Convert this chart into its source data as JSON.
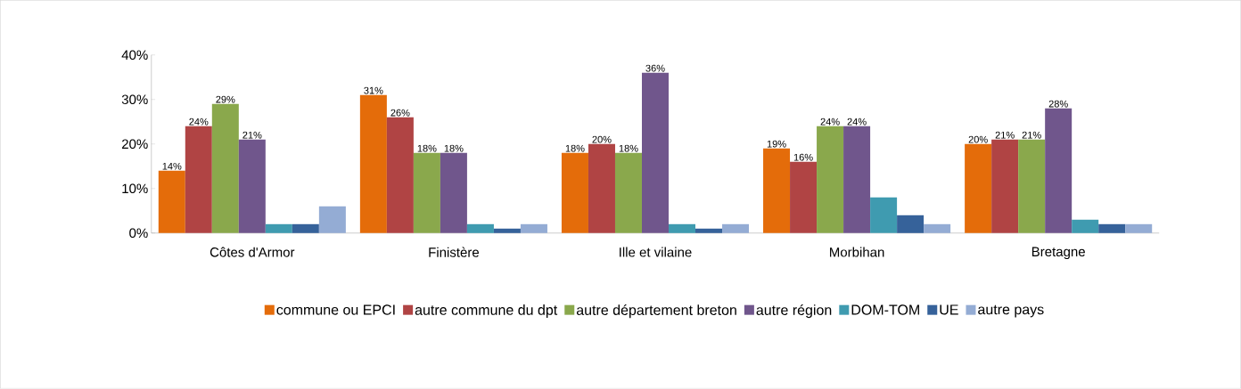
{
  "chart_data": {
    "type": "bar",
    "categories": [
      "Côtes d'Armor",
      "Finistère",
      "Ille et vilaine",
      "Morbihan",
      "Bretagne"
    ],
    "series": [
      {
        "name": "commune ou EPCI",
        "color": "#e46c0a",
        "values": [
          14,
          31,
          18,
          19,
          20
        ],
        "value_labels": [
          "14%",
          "31%",
          "18%",
          "19%",
          "20%"
        ]
      },
      {
        "name": "autre commune du dpt",
        "color": "#b04444",
        "values": [
          24,
          26,
          20,
          16,
          21
        ],
        "value_labels": [
          "24%",
          "26%",
          "20%",
          "16%",
          "21%"
        ]
      },
      {
        "name": "autre département breton",
        "color": "#8aa84c",
        "values": [
          29,
          18,
          18,
          24,
          21
        ],
        "value_labels": [
          "29%",
          "18%",
          "18%",
          "24%",
          "21%"
        ]
      },
      {
        "name": "autre région",
        "color": "#70568c",
        "values": [
          21,
          18,
          36,
          24,
          28
        ],
        "value_labels": [
          "21%",
          "18%",
          "36%",
          "24%",
          "28%"
        ]
      },
      {
        "name": "DOM-TOM",
        "color": "#3f9bb0",
        "values": [
          2,
          2,
          2,
          8,
          3
        ]
      },
      {
        "name": "UE",
        "color": "#36629a",
        "values": [
          2,
          1,
          1,
          4,
          2
        ]
      },
      {
        "name": "autre pays",
        "color": "#94acd4",
        "values": [
          6,
          2,
          2,
          2,
          2
        ]
      }
    ],
    "ylim": [
      0,
      40
    ],
    "yticks": [
      {
        "value": 0,
        "label": "0%"
      },
      {
        "value": 10,
        "label": "10%"
      },
      {
        "value": 20,
        "label": "20%"
      },
      {
        "value": 30,
        "label": "30%"
      },
      {
        "value": 40,
        "label": "40%"
      }
    ],
    "legend": "bottom"
  }
}
